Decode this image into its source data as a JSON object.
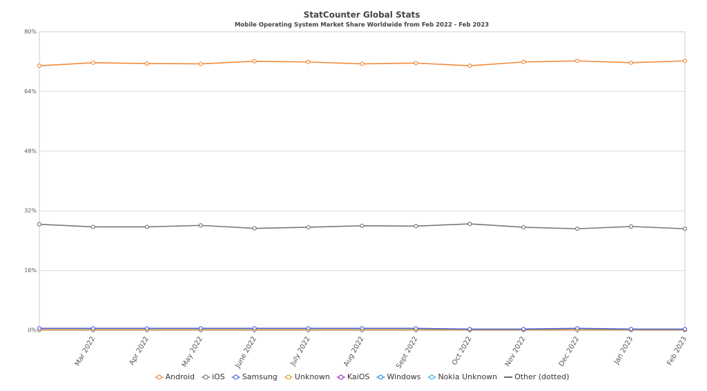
{
  "chart_data": {
    "type": "line",
    "title": "StatCounter Global Stats",
    "subtitle": "Mobile Operating System Market Share Worldwide from Feb 2022 - Feb 2023",
    "categories": [
      null,
      "Mar 2022",
      "Apr 2022",
      "May 2022",
      "June 2022",
      "July 2022",
      "Aug 2022",
      "Sept 2022",
      "Oct 2022",
      "Nov 2022",
      "Dec 2022",
      "Jan 2023",
      "Feb 2023"
    ],
    "ylim": [
      0,
      80
    ],
    "yticks": [
      {
        "value": 0,
        "label": "0%"
      },
      {
        "value": 16,
        "label": "16%"
      },
      {
        "value": 32,
        "label": "32%"
      },
      {
        "value": 48,
        "label": "48%"
      },
      {
        "value": 64,
        "label": "64%"
      },
      {
        "value": 80,
        "label": "80%"
      }
    ],
    "grid": true,
    "series": [
      {
        "name": "Android",
        "color": "#f28a3a",
        "values": [
          70.9,
          71.7,
          71.5,
          71.4,
          72.1,
          71.9,
          71.4,
          71.6,
          70.9,
          71.9,
          72.2,
          71.7,
          72.2
        ]
      },
      {
        "name": "iOS",
        "color": "#777777",
        "values": [
          28.4,
          27.7,
          27.7,
          28.1,
          27.3,
          27.6,
          28.0,
          27.9,
          28.5,
          27.6,
          27.2,
          27.8,
          27.2
        ]
      },
      {
        "name": "Samsung",
        "color": "#4d5fd6",
        "values": [
          0.5,
          0.5,
          0.5,
          0.5,
          0.5,
          0.5,
          0.5,
          0.5,
          0.3,
          0.3,
          0.5,
          0.3,
          0.3
        ]
      },
      {
        "name": "Unknown",
        "color": "#d8a22a",
        "values": [
          0.1,
          0.1,
          0.1,
          0.1,
          0.1,
          0.1,
          0.1,
          0.1,
          0.1,
          0.1,
          0.1,
          0.1,
          0.1
        ]
      },
      {
        "name": "KaiOS",
        "color": "#a033c9",
        "values": [
          0.1,
          0.1,
          0.1,
          0.1,
          0.1,
          0.1,
          0.1,
          0.1,
          0.1,
          0.1,
          0.1,
          0.1,
          0.1
        ]
      },
      {
        "name": "Windows",
        "color": "#2f8ee0",
        "values": [
          0.05,
          0.05,
          0.05,
          0.05,
          0.05,
          0.05,
          0.05,
          0.05,
          0.05,
          0.05,
          0.05,
          0.05,
          0.05
        ]
      },
      {
        "name": "Nokia Unknown",
        "color": "#3ab7e8",
        "values": [
          0.05,
          0.05,
          0.05,
          0.05,
          0.05,
          0.05,
          0.05,
          0.05,
          0.05,
          0.05,
          0.05,
          0.05,
          0.05
        ]
      },
      {
        "name": "Other (dotted)",
        "color": "#333333",
        "line_style": "dotted",
        "values": [
          0.1,
          0.1,
          0.1,
          0.1,
          0.1,
          0.1,
          0.1,
          0.1,
          0.1,
          0.1,
          0.1,
          0.1,
          0.1
        ]
      }
    ]
  }
}
